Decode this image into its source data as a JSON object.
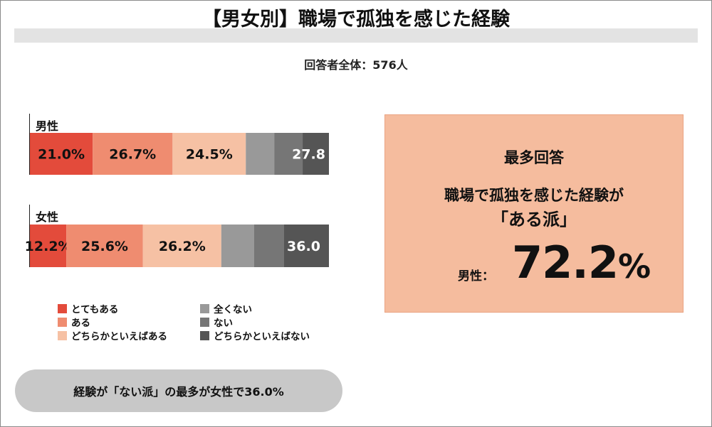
{
  "title": "【男女別】職場で孤独を感じた経験",
  "subtitle": "回答者全体：576人",
  "chart_data": {
    "type": "bar",
    "orientation": "horizontal",
    "stacked": true,
    "normalized": true,
    "categories": [
      "男性",
      "女性"
    ],
    "series": [
      {
        "name": "とてもある",
        "values": [
          21.0,
          12.2
        ],
        "labels": [
          "21.0%",
          "12.2%"
        ],
        "color": "#e34b3b"
      },
      {
        "name": "ある",
        "values": [
          26.7,
          25.6
        ],
        "labels": [
          "26.7%",
          "25.6%"
        ],
        "color": "#ef8c70"
      },
      {
        "name": "どちらかといえばある",
        "values": [
          24.5,
          26.2
        ],
        "labels": [
          "24.5%",
          "26.2%"
        ],
        "color": "#f6c1a4"
      },
      {
        "name": "全くない",
        "values": [
          9.5,
          11.0
        ],
        "labels": [
          "",
          ""
        ],
        "color": "#999999"
      },
      {
        "name": "ない",
        "values": [
          9.5,
          10.0
        ],
        "labels": [
          "",
          ""
        ],
        "color": "#767676"
      },
      {
        "name": "どちらかといえばない",
        "values": [
          8.8,
          15.0
        ],
        "labels": [
          "",
          ""
        ],
        "color": "#555555"
      }
    ],
    "group_labels": [
      {
        "text": "27.8"
      },
      {
        "text": "36.0"
      }
    ]
  },
  "legend": [
    {
      "label": "とてもある",
      "color": "#e34b3b"
    },
    {
      "label": "ある",
      "color": "#ef8c70"
    },
    {
      "label": "どちらかといえばある",
      "color": "#f6c1a4"
    },
    {
      "label": "全くない",
      "color": "#999999"
    },
    {
      "label": "ない",
      "color": "#767676"
    },
    {
      "label": "どちらかといえばない",
      "color": "#555555"
    }
  ],
  "note": "経験が「ない派」の最多が女性で36.0%",
  "highlight": {
    "heading": "最多回答",
    "line1": "職場で孤独を感じた経験が",
    "line2": "「ある派」",
    "prefix": "男性：",
    "value": "72.2",
    "unit": "%"
  }
}
